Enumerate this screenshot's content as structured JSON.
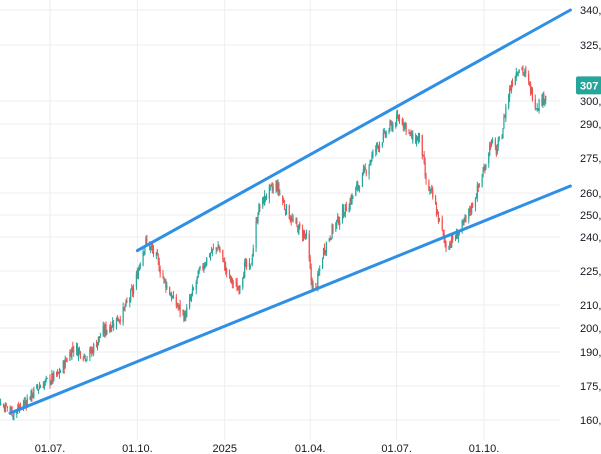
{
  "chart_data": {
    "type": "candlestick",
    "title": "",
    "x_ticks": [
      "01.07.",
      "01.10.",
      "2025",
      "01.04.",
      "01.07.",
      "01.10."
    ],
    "y_ticks": [
      {
        "value": 160,
        "label": "160,"
      },
      {
        "value": 175,
        "label": "175,"
      },
      {
        "value": 190,
        "label": "190,"
      },
      {
        "value": 200,
        "label": "200,"
      },
      {
        "value": 210,
        "label": "210,"
      },
      {
        "value": 225,
        "label": "225,"
      },
      {
        "value": 240,
        "label": "240,"
      },
      {
        "value": 250,
        "label": "250,"
      },
      {
        "value": 260,
        "label": "260,"
      },
      {
        "value": 275,
        "label": "275,"
      },
      {
        "value": 290,
        "label": "290,"
      },
      {
        "value": 300,
        "label": "300,"
      },
      {
        "value": 325,
        "label": "325,"
      },
      {
        "value": 340,
        "label": "340,"
      }
    ],
    "current_price": {
      "value": 307,
      "label": "307"
    },
    "colors": {
      "up": "#26a69a",
      "down": "#ef5350",
      "trendline": "#2f8fe5",
      "grid": "#eceef2",
      "badge": "#26a69a"
    },
    "trend_channel": {
      "upper": {
        "start": {
          "x": "2024-10-01",
          "y": 234
        },
        "end": {
          "x": "2025-12-31",
          "y": 340
        }
      },
      "lower": {
        "start": {
          "x": "2024-05-20",
          "y": 163
        },
        "end": {
          "x": "2025-12-31",
          "y": 263
        }
      }
    },
    "price_path": [
      [
        "2024-04-01",
        168
      ],
      [
        "2024-05-01",
        170
      ],
      [
        "2024-05-15",
        166
      ],
      [
        "2024-05-25",
        163
      ],
      [
        "2024-06-20",
        175
      ],
      [
        "2024-07-10",
        180
      ],
      [
        "2024-07-25",
        192
      ],
      [
        "2024-08-10",
        188
      ],
      [
        "2024-08-25",
        198
      ],
      [
        "2024-09-15",
        206
      ],
      [
        "2024-09-28",
        218
      ],
      [
        "2024-10-05",
        232
      ],
      [
        "2024-10-10",
        238
      ],
      [
        "2024-10-20",
        232
      ],
      [
        "2024-10-28",
        222
      ],
      [
        "2024-11-08",
        212
      ],
      [
        "2024-11-20",
        205
      ],
      [
        "2024-12-05",
        224
      ],
      [
        "2024-12-15",
        232
      ],
      [
        "2024-12-25",
        236
      ],
      [
        "2025-01-05",
        222
      ],
      [
        "2025-01-15",
        217
      ],
      [
        "2025-01-22",
        227
      ],
      [
        "2025-01-28",
        226
      ],
      [
        "2025-02-05",
        252
      ],
      [
        "2025-02-15",
        260
      ],
      [
        "2025-02-25",
        263
      ],
      [
        "2025-03-05",
        254
      ],
      [
        "2025-03-15",
        246
      ],
      [
        "2025-03-28",
        240
      ],
      [
        "2025-04-02",
        221
      ],
      [
        "2025-04-06",
        215
      ],
      [
        "2025-04-15",
        234
      ],
      [
        "2025-04-25",
        244
      ],
      [
        "2025-05-10",
        254
      ],
      [
        "2025-05-25",
        266
      ],
      [
        "2025-06-10",
        280
      ],
      [
        "2025-06-25",
        289
      ],
      [
        "2025-07-05",
        293
      ],
      [
        "2025-07-12",
        288
      ],
      [
        "2025-07-18",
        283
      ],
      [
        "2025-07-26",
        284
      ],
      [
        "2025-08-01",
        264
      ],
      [
        "2025-08-08",
        258
      ],
      [
        "2025-08-15",
        247
      ],
      [
        "2025-08-22",
        236
      ],
      [
        "2025-09-01",
        240
      ],
      [
        "2025-09-10",
        246
      ],
      [
        "2025-09-20",
        256
      ],
      [
        "2025-10-01",
        270
      ],
      [
        "2025-10-08",
        282
      ],
      [
        "2025-10-14",
        278
      ],
      [
        "2025-10-20",
        286
      ],
      [
        "2025-10-25",
        300
      ],
      [
        "2025-11-01",
        311
      ],
      [
        "2025-11-08",
        316
      ],
      [
        "2025-11-15",
        310
      ],
      [
        "2025-11-25",
        298
      ],
      [
        "2025-12-02",
        301
      ],
      [
        "2025-12-08",
        305
      ],
      [
        "2025-12-14",
        307
      ]
    ]
  }
}
